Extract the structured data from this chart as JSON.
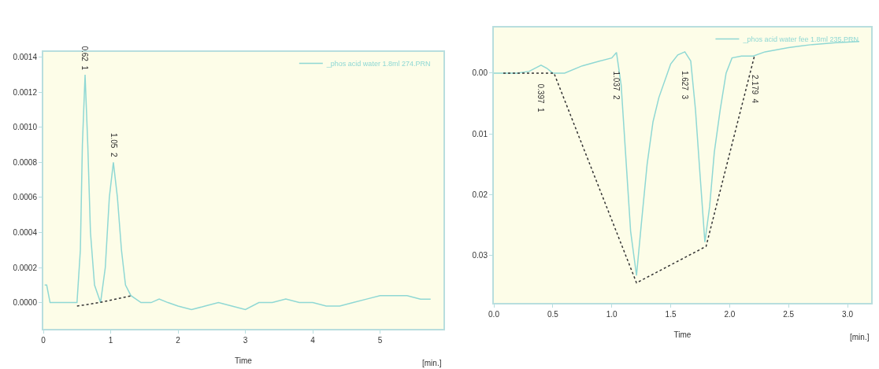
{
  "chart_data": [
    {
      "type": "line",
      "xlabel": "Time",
      "legend": "top right",
      "xlim": [
        0,
        5.94
      ],
      "xticks": [
        0,
        1,
        2,
        3,
        4,
        5
      ],
      "ylim": [
        -0.00015,
        0.00143
      ],
      "yticks": [
        {
          "value": 0,
          "label": "0.0000"
        },
        {
          "value": 0.0002,
          "label": "0.0002"
        },
        {
          "value": 0.0004,
          "label": "0.0004"
        },
        {
          "value": 0.0006,
          "label": "0.0006"
        },
        {
          "value": 0.0008,
          "label": "0.0008"
        },
        {
          "value": 0.001,
          "label": "0.0010"
        },
        {
          "value": 0.0012,
          "label": "0.0012"
        },
        {
          "value": 0.0014,
          "label": "0.0014"
        }
      ],
      "series": [
        {
          "name": "_phos acid water 1.8ml 274.PRN",
          "color": "#8fd8d4",
          "line_style": "solid",
          "x": [
            0.02,
            0.05,
            0.1,
            0.2,
            0.35,
            0.5,
            0.55,
            0.58,
            0.62,
            0.66,
            0.7,
            0.76,
            0.85,
            0.92,
            0.98,
            1.04,
            1.1,
            1.16,
            1.22,
            1.3,
            1.45,
            1.6,
            1.72,
            1.85,
            2.0,
            2.2,
            2.4,
            2.6,
            2.8,
            3.0,
            3.2,
            3.4,
            3.6,
            3.8,
            4.0,
            4.2,
            4.4,
            4.6,
            4.8,
            5.0,
            5.2,
            5.4,
            5.6,
            5.75
          ],
          "values": [
            0.0001,
            0.0001,
            0.0,
            0.0,
            0.0,
            0.0,
            0.0003,
            0.0009,
            0.0013,
            0.0009,
            0.0004,
            0.0001,
            0.0,
            0.0002,
            0.0006,
            0.0008,
            0.0006,
            0.0003,
            0.0001,
            4e-05,
            0.0,
            0.0,
            2e-05,
            0.0,
            -2e-05,
            -4e-05,
            -2e-05,
            0.0,
            -2e-05,
            -4e-05,
            0.0,
            0.0,
            2e-05,
            0.0,
            0.0,
            -2e-05,
            -2e-05,
            0.0,
            2e-05,
            4e-05,
            4e-05,
            4e-05,
            2e-05,
            2e-05
          ]
        },
        {
          "color": "#333333",
          "line_style": "dotted",
          "x": [
            0.5,
            0.83,
            1.32
          ],
          "values": [
            -2e-05,
            0.0,
            4e-05
          ]
        }
      ],
      "annotations": [
        {
          "text": "0.62  1",
          "x": 0.62,
          "y": 0.0013
        },
        {
          "text": "1.05  2",
          "x": 1.04,
          "y": 0.0008
        },
        "[min.]"
      ]
    },
    {
      "type": "line",
      "xlabel": "Time",
      "legend": "top right",
      "xlim": [
        0,
        3.2
      ],
      "xticks": [
        {
          "value": 0,
          "label": "0.0"
        },
        0.5,
        {
          "value": 1,
          "label": "1.0"
        },
        1.5,
        {
          "value": 2,
          "label": "2.0"
        },
        2.5,
        {
          "value": 3,
          "label": "3.0"
        }
      ],
      "ylim": [
        0.0378,
        -0.0075
      ],
      "yticks": [
        {
          "value": 0,
          "label": "0.00"
        },
        {
          "value": 0.01,
          "label": "0.01"
        },
        {
          "value": 0.02,
          "label": "0.02"
        },
        {
          "value": 0.03,
          "label": "0.03"
        }
      ],
      "series": [
        {
          "name": "_phos acid water fee 1.8ml 235.PRN",
          "color": "#8fd8d4",
          "line_style": "solid",
          "x": [
            0.0,
            0.1,
            0.2,
            0.3,
            0.4,
            0.45,
            0.5,
            0.6,
            0.75,
            0.9,
            1.0,
            1.04,
            1.08,
            1.12,
            1.16,
            1.21,
            1.25,
            1.3,
            1.35,
            1.4,
            1.5,
            1.56,
            1.62,
            1.67,
            1.71,
            1.75,
            1.79,
            1.83,
            1.87,
            1.92,
            1.97,
            2.02,
            2.1,
            2.2,
            2.3,
            2.5,
            2.7,
            2.9,
            3.1
          ],
          "values": [
            0.0,
            0.0,
            0.0,
            -0.0003,
            -0.0013,
            -0.0008,
            0.0,
            0.0,
            -0.0012,
            -0.002,
            -0.0025,
            -0.0034,
            0.002,
            0.014,
            0.026,
            0.0333,
            0.025,
            0.015,
            0.008,
            0.004,
            -0.0015,
            -0.003,
            -0.0035,
            -0.002,
            0.006,
            0.017,
            0.0278,
            0.022,
            0.013,
            0.006,
            0.0,
            -0.0025,
            -0.0028,
            -0.0028,
            -0.0035,
            -0.0042,
            -0.0047,
            -0.005,
            -0.0052
          ]
        },
        {
          "color": "#333333",
          "line_style": "dotted",
          "x": [
            0.08,
            0.51,
            1.21,
            1.8,
            2.21
          ],
          "values": [
            0.0,
            0.0,
            0.0345,
            0.0285,
            -0.0028
          ]
        }
      ],
      "annotations": [
        {
          "text": "0.397  1",
          "x": 0.4,
          "y": -0.0013
        },
        {
          "text": "1.037  2",
          "x": 1.04,
          "y": -0.0034
        },
        {
          "text": "1.627  3",
          "x": 1.62,
          "y": -0.0035
        },
        {
          "text": "2.179  4",
          "x": 2.21,
          "y": -0.0028
        },
        "[min.]"
      ]
    }
  ]
}
